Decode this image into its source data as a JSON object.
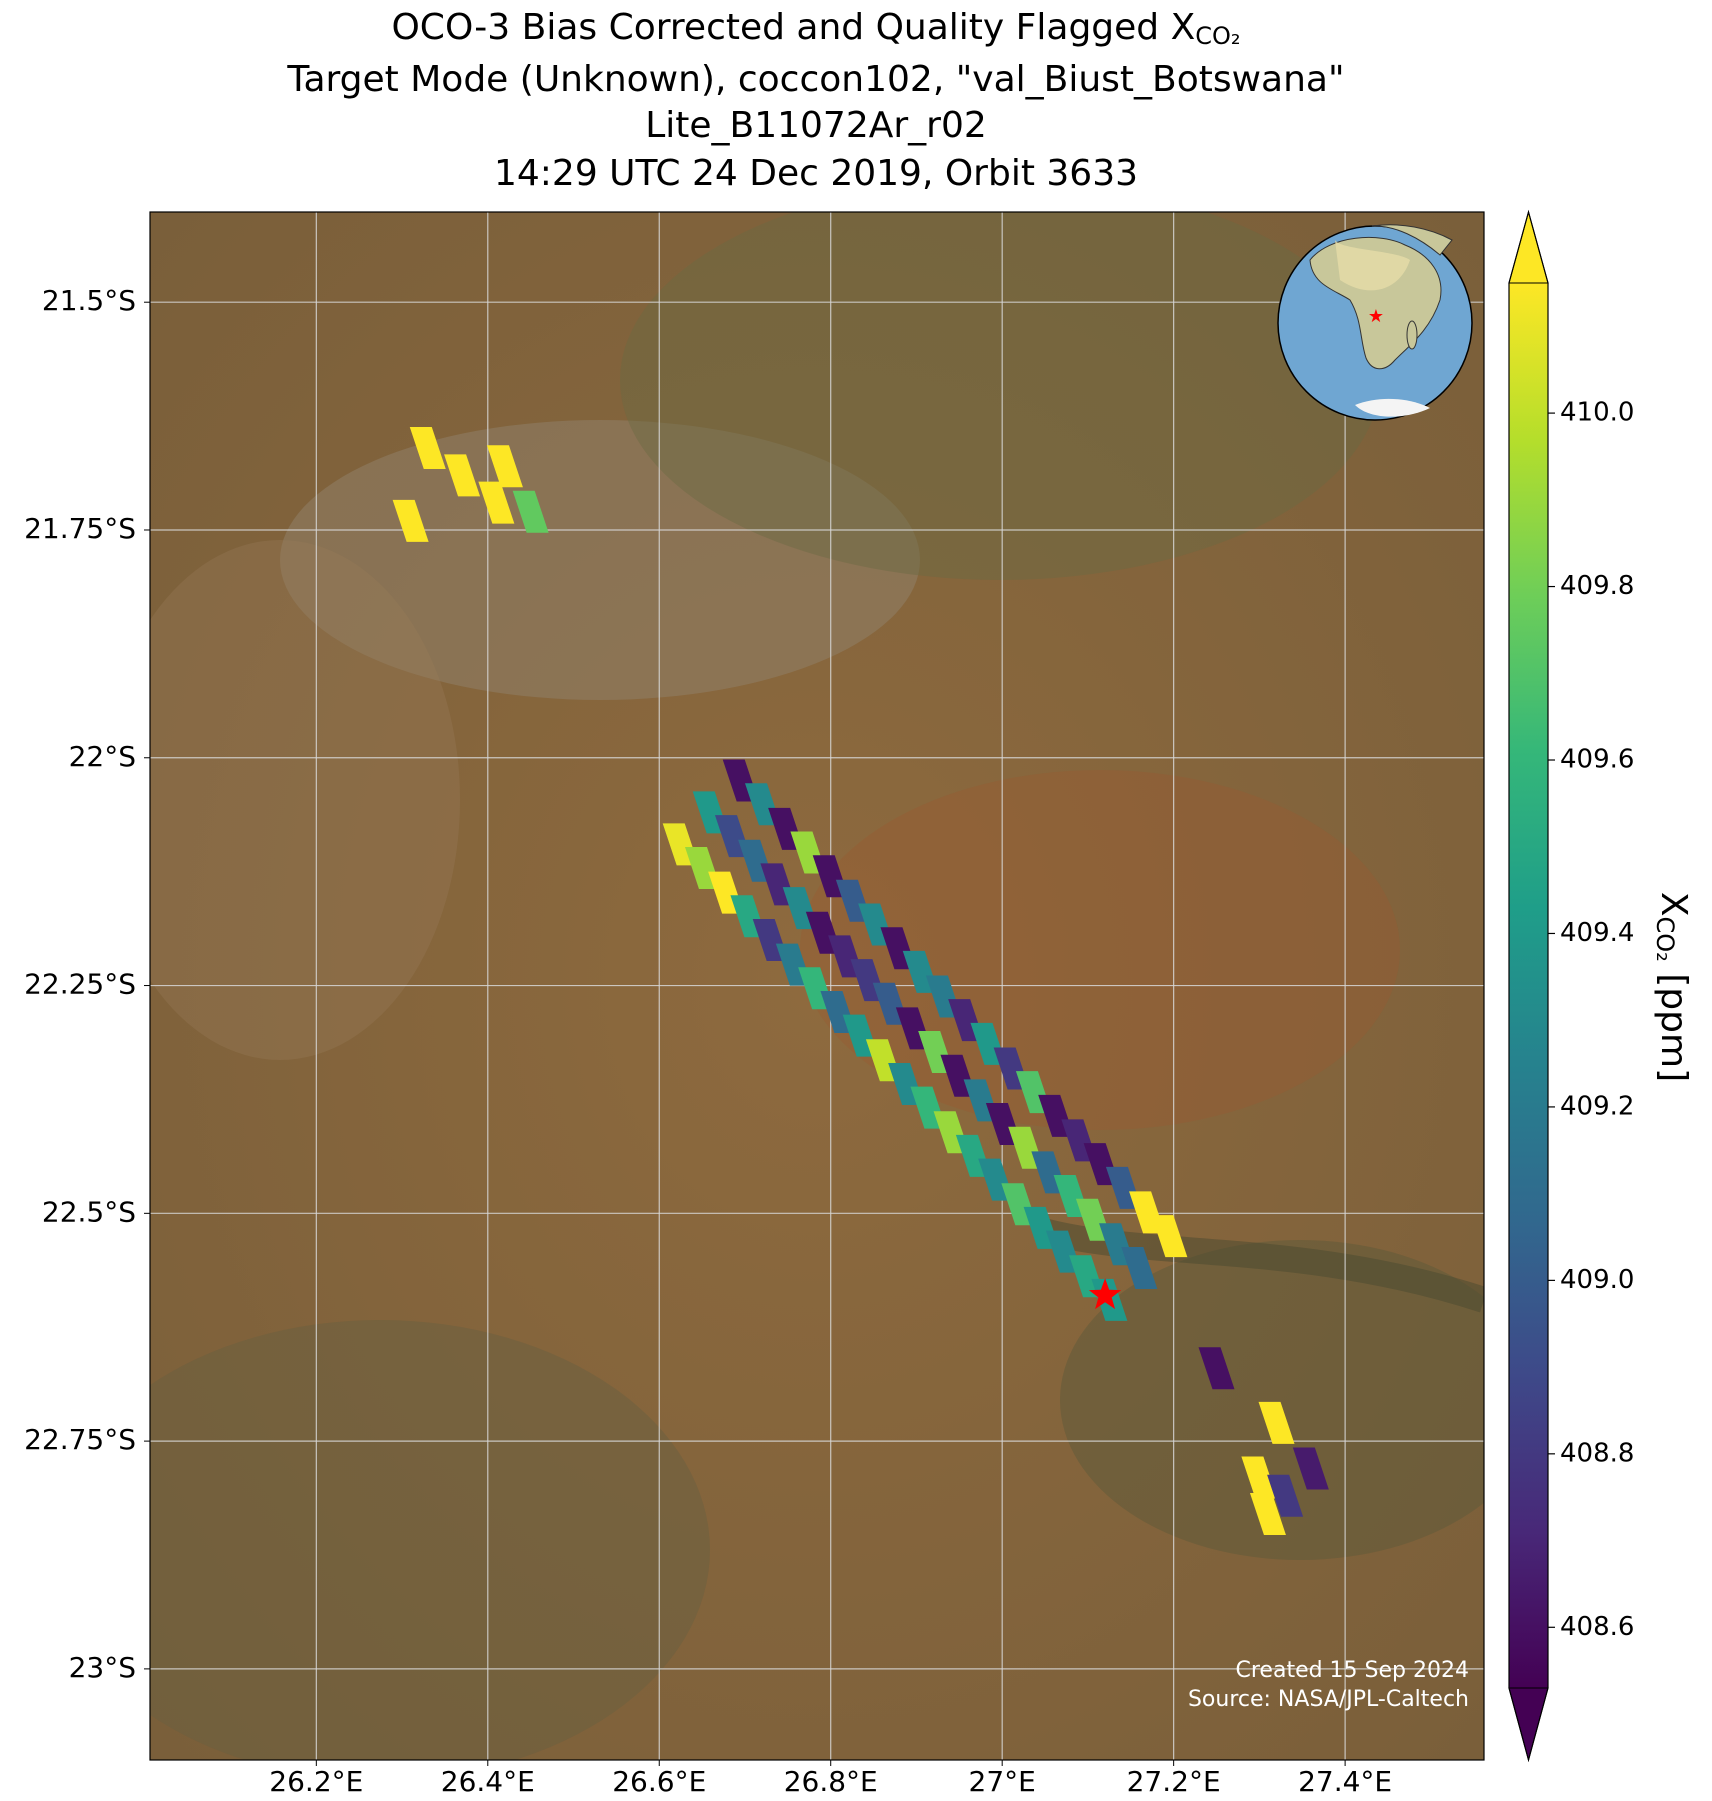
{
  "chart_data": {
    "type": "map",
    "title": "OCO-3 Bias Corrected and Quality Flagged X",
    "title_subscript": "CO₂",
    "subtitle": "Target Mode (Unknown), coccon102, \"val_Biust_Botswana\"",
    "subtitle2": "Lite_B11072Ar_r02",
    "subtitle3": "14:29 UTC 24 Dec 2019, Orbit 3633",
    "annotations": [
      "Created 15 Sep 2024",
      "Source: NASA/JPL-Caltech"
    ],
    "colorbar_label": "X",
    "colorbar_label_subscript": "CO₂",
    "colorbar_label_units": " [ppm]",
    "colormap": "viridis",
    "clim": [
      408.53,
      410.15
    ],
    "cticks": [
      408.6,
      408.8,
      {
        "value": 409,
        "label": "409.0"
      },
      409.2,
      409.4,
      409.6,
      409.8,
      {
        "value": 410,
        "label": "410.0"
      }
    ],
    "xlim": [
      26.006,
      27.562
    ],
    "ylim": [
      -23.1,
      -21.401
    ],
    "xticks": [
      {
        "value": 26.2,
        "label": "26.2°E"
      },
      {
        "value": 26.4,
        "label": "26.4°E"
      },
      {
        "value": 26.6,
        "label": "26.6°E"
      },
      {
        "value": 26.8,
        "label": "26.8°E"
      },
      {
        "value": 27,
        "label": "27°E"
      },
      {
        "value": 27.2,
        "label": "27.2°E"
      },
      {
        "value": 27.4,
        "label": "27.4°E"
      }
    ],
    "yticks": [
      {
        "value": -21.5,
        "label": "21.5°S"
      },
      {
        "value": -21.75,
        "label": "21.75°S"
      },
      {
        "value": -22,
        "label": "22°S"
      },
      {
        "value": -22.25,
        "label": "22.25°S"
      },
      {
        "value": -22.5,
        "label": "22.5°S"
      },
      {
        "value": -22.75,
        "label": "22.75°S"
      },
      {
        "value": -23,
        "label": "23°S"
      }
    ],
    "grid": true,
    "site": {
      "lon": 27.12,
      "lat": -22.59,
      "color": "#ff0000"
    },
    "lon": [
      26.625,
      26.66,
      26.695,
      26.651,
      26.686,
      26.721,
      26.678,
      26.713,
      26.748,
      26.704,
      26.739,
      26.774,
      26.73,
      26.765,
      26.8,
      26.757,
      26.792,
      26.827,
      26.783,
      26.818,
      26.853,
      26.809,
      26.844,
      26.879,
      26.835,
      26.87,
      26.905,
      26.862,
      26.897,
      26.932,
      26.888,
      26.923,
      26.958,
      26.914,
      26.949,
      26.984,
      26.941,
      26.976,
      27.011,
      26.967,
      27.002,
      27.037,
      26.993,
      27.028,
      27.063,
      27.02,
      27.055,
      27.09,
      27.046,
      27.081,
      27.116,
      27.072,
      27.107,
      27.142,
      27.099,
      27.134,
      27.169,
      27.125,
      27.16,
      27.195,
      26.33,
      26.37,
      26.42,
      26.41,
      26.45,
      26.31,
      27.25,
      27.32,
      27.36,
      27.3,
      27.31,
      27.33
    ],
    "lat": [
      -22.095,
      -22.06,
      -22.025,
      -22.121,
      -22.086,
      -22.051,
      -22.148,
      -22.113,
      -22.078,
      -22.174,
      -22.139,
      -22.104,
      -22.2,
      -22.165,
      -22.13,
      -22.227,
      -22.192,
      -22.157,
      -22.253,
      -22.218,
      -22.183,
      -22.279,
      -22.244,
      -22.209,
      -22.305,
      -22.27,
      -22.235,
      -22.332,
      -22.297,
      -22.262,
      -22.358,
      -22.323,
      -22.288,
      -22.384,
      -22.349,
      -22.314,
      -22.411,
      -22.376,
      -22.341,
      -22.437,
      -22.402,
      -22.367,
      -22.463,
      -22.428,
      -22.393,
      -22.49,
      -22.455,
      -22.42,
      -22.516,
      -22.481,
      -22.446,
      -22.542,
      -22.507,
      -22.472,
      -22.569,
      -22.534,
      -22.499,
      -22.595,
      -22.56,
      -22.525,
      -21.66,
      -21.69,
      -21.68,
      -21.72,
      -21.73,
      -21.74,
      -22.67,
      -22.73,
      -22.78,
      -22.79,
      -22.83,
      -22.81
    ],
    "values": [
      410.1,
      409.4,
      408.6,
      409.9,
      408.9,
      409.3,
      410.2,
      409.1,
      408.6,
      409.5,
      408.7,
      409.9,
      408.8,
      409.3,
      408.6,
      409.2,
      408.6,
      409.0,
      409.6,
      408.7,
      409.3,
      409.1,
      408.8,
      408.6,
      409.4,
      409.0,
      409.3,
      410.0,
      408.6,
      409.2,
      409.3,
      409.8,
      408.7,
      409.6,
      408.6,
      409.4,
      409.9,
      409.2,
      408.8,
      409.5,
      408.6,
      409.7,
      409.3,
      409.9,
      408.6,
      409.7,
      409.1,
      408.7,
      409.4,
      409.6,
      408.6,
      409.3,
      409.8,
      409.0,
      409.5,
      409.2,
      410.2,
      409.4,
      409.1,
      410.2,
      410.2,
      410.2,
      410.2,
      410.2,
      409.75,
      410.2,
      408.6,
      410.2,
      408.65,
      410.2,
      410.2,
      408.8
    ]
  }
}
